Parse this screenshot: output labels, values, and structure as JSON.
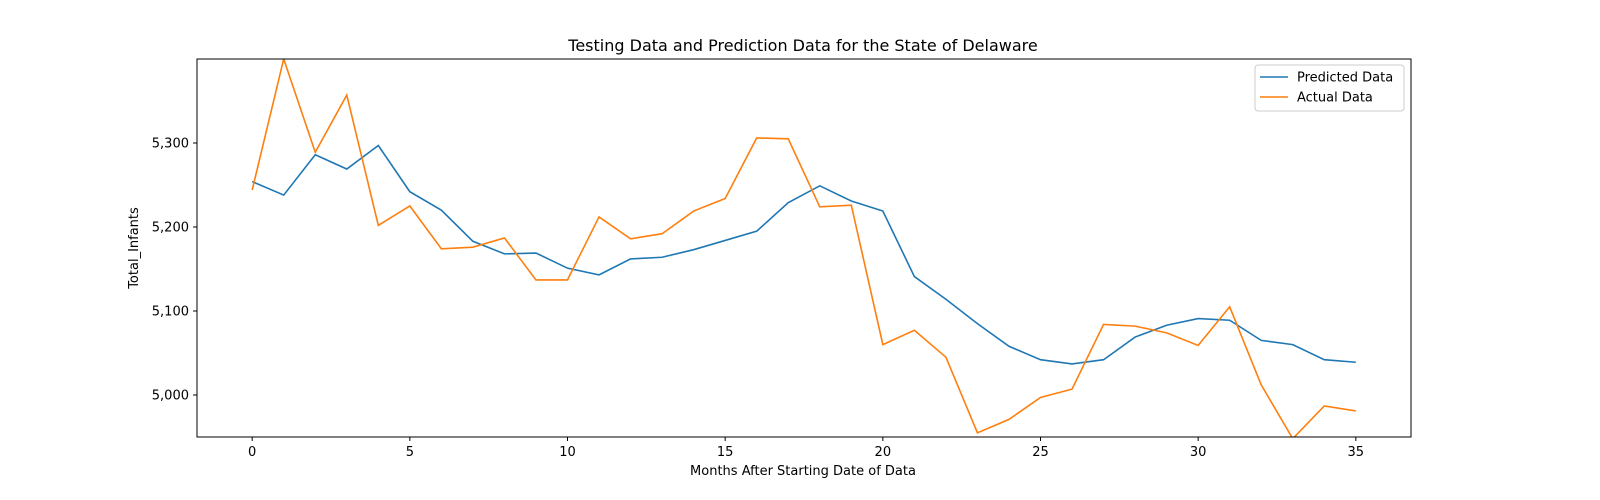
{
  "chart_data": {
    "type": "line",
    "title": "Testing Data and Prediction Data for the State of Delaware",
    "xlabel": "Months After Starting Date of Data",
    "ylabel": "Total_Infants",
    "xlim": [
      -1.75,
      36.75
    ],
    "ylim": [
      4950,
      5400
    ],
    "xticks": [
      0,
      5,
      10,
      15,
      20,
      25,
      30,
      35
    ],
    "yticks": [
      5000,
      5100,
      5200,
      5300
    ],
    "ytick_labels": [
      "5,000",
      "5,100",
      "5,200",
      "5,300"
    ],
    "grid": false,
    "legend_position": "top-right",
    "x": [
      0,
      1,
      2,
      3,
      4,
      5,
      6,
      7,
      8,
      9,
      10,
      11,
      12,
      13,
      14,
      15,
      16,
      17,
      18,
      19,
      20,
      21,
      22,
      23,
      24,
      25,
      26,
      27,
      28,
      29,
      30,
      31,
      32,
      33,
      34,
      35
    ],
    "series": [
      {
        "name": "Predicted Data",
        "color": "#1f77b4",
        "values": [
          5254,
          5238,
          5286,
          5269,
          5297,
          5242,
          5220,
          5183,
          5168,
          5169,
          5151,
          5143,
          5162,
          5164,
          5173,
          5184,
          5195,
          5229,
          5249,
          5231,
          5219,
          5141,
          5114,
          5085,
          5058,
          5042,
          5037,
          5042,
          5069,
          5083,
          5091,
          5089,
          5065,
          5060,
          5042,
          5039
        ]
      },
      {
        "name": "Actual Data",
        "color": "#ff7f0e",
        "values": [
          5244,
          5400,
          5289,
          5357,
          5202,
          5225,
          5174,
          5176,
          5187,
          5137,
          5137,
          5212,
          5186,
          5192,
          5219,
          5234,
          5306,
          5305,
          5224,
          5226,
          5060,
          5077,
          5045,
          4955,
          4971,
          4997,
          5007,
          5084,
          5082,
          5074,
          5059,
          5105,
          5012,
          4948,
          4987,
          4981
        ]
      }
    ]
  }
}
